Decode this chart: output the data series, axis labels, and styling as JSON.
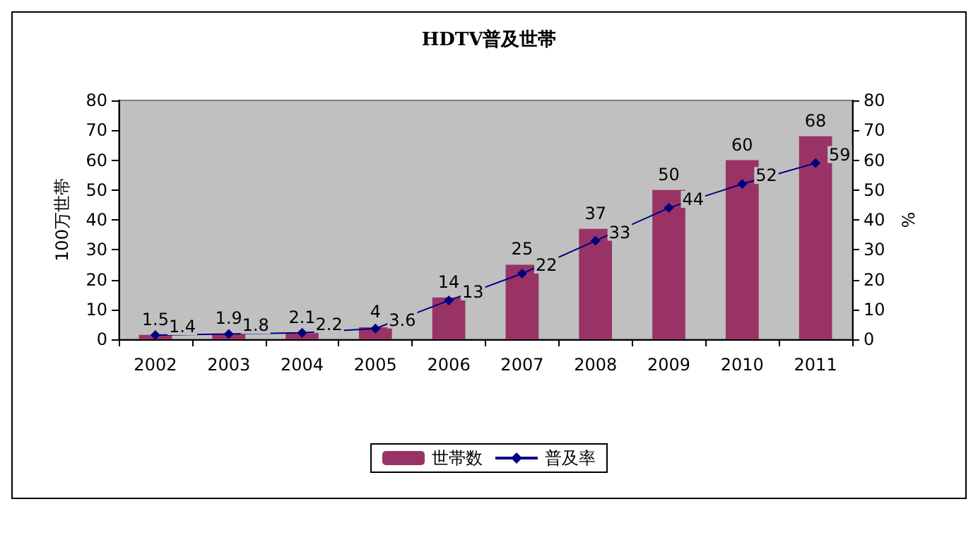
{
  "chart_data": {
    "type": "bar",
    "title": "HDTV普及世帯",
    "ylabel": "100万世帯",
    "y2label": "%",
    "categories": [
      "2002",
      "2003",
      "2004",
      "2005",
      "2006",
      "2007",
      "2008",
      "2009",
      "2010",
      "2011"
    ],
    "series": [
      {
        "name": "世帯数",
        "color": "#993366",
        "values": [
          1.5,
          1.9,
          2.1,
          4,
          14,
          25,
          37,
          50,
          60,
          68
        ]
      },
      {
        "name": "普及率",
        "type": "line",
        "axis": "y2",
        "color": "#000080",
        "marker": "diamond",
        "values": [
          1.4,
          1.8,
          2.2,
          3.6,
          13,
          22,
          33,
          44,
          52,
          59
        ]
      }
    ],
    "ylim": [
      0,
      80
    ],
    "yticks": [
      0,
      10,
      20,
      30,
      40,
      50,
      60,
      70,
      80
    ],
    "y2lim": [
      0,
      80
    ],
    "y2ticks": [
      0,
      10,
      20,
      30,
      40,
      50,
      60,
      70,
      80
    ],
    "data_labels": true,
    "grid": false,
    "legend": "bottom"
  }
}
